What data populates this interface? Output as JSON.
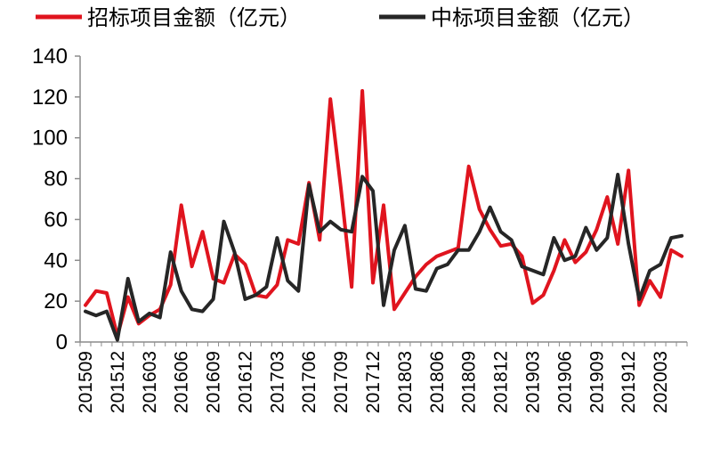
{
  "chart_data": {
    "type": "line",
    "title": "",
    "xlabel": "",
    "ylabel": "",
    "ylim": [
      0,
      140
    ],
    "yticks": [
      0,
      20,
      40,
      60,
      80,
      100,
      120,
      140
    ],
    "grid": false,
    "legend_position": "top",
    "x": [
      "201509",
      "201510",
      "201511",
      "201512",
      "201601",
      "201602",
      "201603",
      "201604",
      "201605",
      "201606",
      "201607",
      "201608",
      "201609",
      "201610",
      "201611",
      "201612",
      "201701",
      "201702",
      "201703",
      "201704",
      "201705",
      "201706",
      "201707",
      "201708",
      "201709",
      "201710",
      "201711",
      "201712",
      "201801",
      "201802",
      "201803",
      "201804",
      "201805",
      "201806",
      "201807",
      "201808",
      "201809",
      "201810",
      "201811",
      "201812",
      "201901",
      "201902",
      "201903",
      "201904",
      "201905",
      "201906",
      "201907",
      "201908",
      "201909",
      "201910",
      "201911",
      "201912",
      "202001",
      "202002",
      "202003",
      "202004",
      "202005"
    ],
    "x_tick_labels": [
      "201509",
      "201512",
      "201603",
      "201606",
      "201609",
      "201612",
      "201703",
      "201706",
      "201709",
      "201712",
      "201803",
      "201806",
      "201809",
      "201812",
      "201903",
      "201906",
      "201909",
      "201912",
      "202003"
    ],
    "series": [
      {
        "name": "招标项目金额（亿元）",
        "color": "#e0141e",
        "values": [
          18,
          25,
          24,
          3,
          22,
          9,
          13,
          16,
          28,
          67,
          37,
          54,
          31,
          29,
          43,
          38,
          23,
          22,
          28,
          50,
          48,
          78,
          50,
          119,
          75,
          27,
          123,
          29,
          67,
          16,
          24,
          32,
          38,
          42,
          44,
          46,
          86,
          65,
          55,
          47,
          48,
          42,
          19,
          23,
          35,
          50,
          39,
          44,
          55,
          71,
          48,
          84,
          18,
          30,
          22,
          45,
          42
        ]
      },
      {
        "name": "中标项目金额（亿元）",
        "color": "#262626",
        "values": [
          15,
          13,
          15,
          1,
          31,
          10,
          14,
          12,
          44,
          25,
          16,
          15,
          21,
          59,
          44,
          21,
          23,
          27,
          51,
          30,
          25,
          77,
          54,
          59,
          55,
          54,
          81,
          74,
          18,
          45,
          57,
          26,
          25,
          36,
          38,
          45,
          45,
          54,
          66,
          54,
          50,
          37,
          35,
          33,
          51,
          40,
          42,
          56,
          45,
          51,
          82,
          48,
          21,
          35,
          38,
          51,
          52
        ]
      }
    ]
  }
}
